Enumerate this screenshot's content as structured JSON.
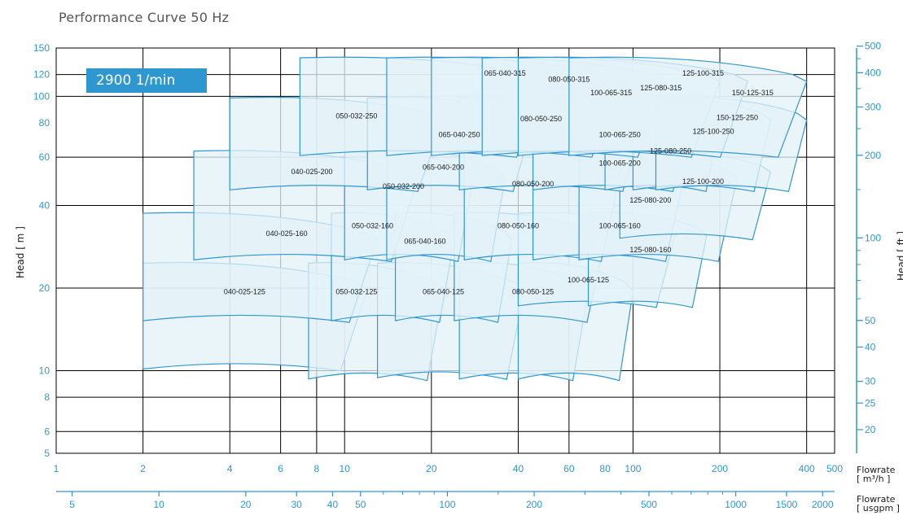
{
  "title": "Performance Curve 50 Hz",
  "badge": "2900 1/min",
  "colors": {
    "axis_blue": "#2f97cf",
    "region_fill": "#e3f1f8",
    "region_stroke": "#2f97cf",
    "grid": "#000000",
    "badge_bg": "#2f97cf"
  },
  "chart_data": {
    "type": "area",
    "title": "Performance Curve 50 Hz",
    "speed": "2900 1/min",
    "x_scale": "log",
    "y_scale": "log",
    "xlim": [
      1,
      500
    ],
    "ylim": [
      5,
      150
    ],
    "grid": true,
    "ylabel": "Head [ m ]",
    "ylabel_right": "Head [ ft ]",
    "xlabel_primary": [
      "Flowrate",
      "[ m³/h ]"
    ],
    "xlabel_secondary": [
      "Flowrate",
      "[ usgpm ]"
    ],
    "y_ticks_m": [
      5,
      6,
      8,
      10,
      20,
      40,
      60,
      80,
      100,
      120,
      150
    ],
    "y_ticks_ft": [
      20,
      25,
      30,
      40,
      50,
      100,
      200,
      300,
      400,
      500
    ],
    "x_ticks_m3h": [
      1,
      2,
      4,
      6,
      8,
      10,
      20,
      40,
      60,
      80,
      100,
      200,
      400,
      500
    ],
    "x_ticks_usgpm": [
      5,
      10,
      20,
      30,
      40,
      50,
      100,
      200,
      500,
      1000,
      1500,
      2000
    ],
    "x_major_grid": [
      1,
      2,
      4,
      6,
      8,
      10,
      20,
      40,
      60,
      100,
      200,
      400,
      500
    ],
    "y_major_grid": [
      5,
      6,
      8,
      10,
      20,
      40,
      60,
      100,
      120,
      150
    ],
    "regions": [
      {
        "name": "040-025-125",
        "q": [
          2,
          12
        ],
        "h": [
          10,
          25
        ],
        "label_at": [
          4.5,
          19
        ]
      },
      {
        "name": "050-032-125",
        "q": [
          7.5,
          22
        ],
        "h": [
          9.2,
          25
        ],
        "label_at": [
          11,
          19
        ]
      },
      {
        "name": "065-040-125",
        "q": [
          13,
          42
        ],
        "h": [
          9.3,
          25
        ],
        "label_at": [
          22,
          19
        ]
      },
      {
        "name": "080-050-125",
        "q": [
          25,
          70
        ],
        "h": [
          9.2,
          25
        ],
        "label_at": [
          45,
          19
        ]
      },
      {
        "name": "100-065-125",
        "q": [
          40,
          100
        ],
        "h": [
          9.2,
          25
        ],
        "label_at": [
          70,
          21
        ]
      },
      {
        "name": "040-025-160",
        "q": [
          2,
          13
        ],
        "h": [
          15,
          38
        ],
        "label_at": [
          6.3,
          31
        ]
      },
      {
        "name": "050-032-160",
        "q": [
          9,
          24
        ],
        "h": [
          15,
          38
        ],
        "label_at": [
          12.5,
          33
        ]
      },
      {
        "name": "065-040-160",
        "q": [
          15,
          38
        ],
        "h": [
          15,
          38
        ],
        "label_at": [
          19,
          29
        ]
      },
      {
        "name": "080-050-160",
        "q": [
          24,
          80
        ],
        "h": [
          15,
          38
        ],
        "label_at": [
          40,
          33
        ]
      },
      {
        "name": "100-065-160",
        "q": [
          40,
          140
        ],
        "h": [
          17,
          38
        ],
        "label_at": [
          90,
          33
        ]
      },
      {
        "name": "125-080-160",
        "q": [
          70,
          180
        ],
        "h": [
          17,
          38
        ],
        "label_at": [
          115,
          27
        ]
      },
      {
        "name": "040-025-200",
        "q": [
          3,
          18
        ],
        "h": [
          25,
          64
        ],
        "label_at": [
          7.7,
          52
        ]
      },
      {
        "name": "050-032-200",
        "q": [
          10,
          28
        ],
        "h": [
          25,
          64
        ],
        "label_at": [
          16,
          46
        ]
      },
      {
        "name": "065-040-200",
        "q": [
          14,
          36
        ],
        "h": [
          25,
          64
        ],
        "label_at": [
          22,
          54
        ]
      },
      {
        "name": "080-050-200",
        "q": [
          26,
          90
        ],
        "h": [
          25,
          64
        ],
        "label_at": [
          45,
          47
        ]
      },
      {
        "name": "100-065-200",
        "q": [
          45,
          150
        ],
        "h": [
          25,
          64
        ],
        "label_at": [
          90,
          56
        ]
      },
      {
        "name": "125-080-200",
        "q": [
          65,
          230
        ],
        "h": [
          25,
          64
        ],
        "label_at": [
          115,
          41
        ]
      },
      {
        "name": "125-100-200",
        "q": [
          90,
          300
        ],
        "h": [
          30,
          64
        ],
        "label_at": [
          175,
          48
        ]
      },
      {
        "name": "050-032-250",
        "q": [
          4,
          22
        ],
        "h": [
          45,
          100
        ],
        "label_at": [
          11,
          83
        ]
      },
      {
        "name": "065-040-250",
        "q": [
          12,
          45
        ],
        "h": [
          45,
          100
        ],
        "label_at": [
          25,
          71
        ]
      },
      {
        "name": "080-050-250",
        "q": [
          25,
          110
        ],
        "h": [
          45,
          100
        ],
        "label_at": [
          48,
          81
        ]
      },
      {
        "name": "100-065-250",
        "q": [
          45,
          160
        ],
        "h": [
          45,
          100
        ],
        "label_at": [
          90,
          71
        ]
      },
      {
        "name": "125-080-250",
        "q": [
          80,
          200
        ],
        "h": [
          45,
          100
        ],
        "label_at": [
          135,
          62
        ]
      },
      {
        "name": "125-100-250",
        "q": [
          100,
          300
        ],
        "h": [
          45,
          100
        ],
        "label_at": [
          190,
          73
        ]
      },
      {
        "name": "150-125-250",
        "q": [
          120,
          400
        ],
        "h": [
          45,
          100
        ],
        "label_at": [
          230,
          82
        ]
      },
      {
        "name": "065-040-315",
        "q": [
          7,
          50
        ],
        "h": [
          60,
          140
        ],
        "label_at": [
          36,
          119
        ]
      },
      {
        "name": "080-050-315",
        "q": [
          14,
          90
        ],
        "h": [
          60,
          140
        ],
        "label_at": [
          60,
          113
        ]
      },
      {
        "name": "100-065-315",
        "q": [
          20,
          130
        ],
        "h": [
          60,
          140
        ],
        "label_at": [
          84,
          101
        ]
      },
      {
        "name": "125-080-315",
        "q": [
          30,
          200
        ],
        "h": [
          60,
          140
        ],
        "label_at": [
          125,
          105
        ]
      },
      {
        "name": "125-100-315",
        "q": [
          40,
          250
        ],
        "h": [
          60,
          140
        ],
        "label_at": [
          175,
          119
        ]
      },
      {
        "name": "150-125-315",
        "q": [
          60,
          400
        ],
        "h": [
          60,
          140
        ],
        "label_at": [
          260,
          101
        ]
      }
    ]
  }
}
